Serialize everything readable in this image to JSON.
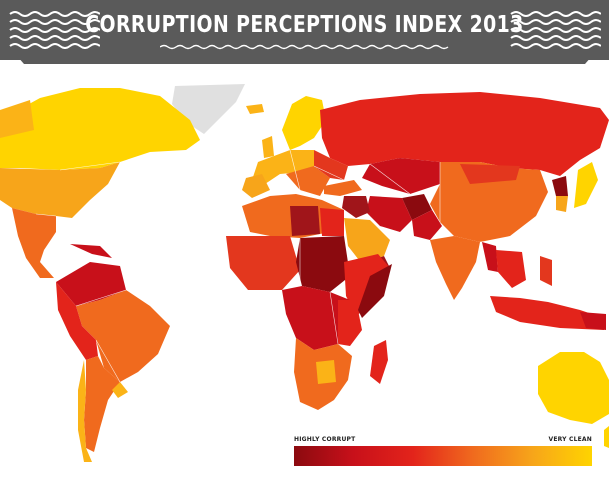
{
  "title": "CORRUPTION PERCEPTIONS INDEX 2013",
  "legend": {
    "low_label": "HIGHLY CORRUPT",
    "high_label": "VERY CLEAN",
    "gradient": [
      "#8b0a0f",
      "#c8101a",
      "#e3241b",
      "#f06a1e",
      "#f7a51a",
      "#ffd400"
    ]
  },
  "colors": {
    "header": "#5a5a5a",
    "ocean": "#ffffff",
    "no_data": "#e0e0e0",
    "very_clean": "#ffd400",
    "clean": "#fbb317",
    "mid": "#f07a22",
    "corrupt": "#e3371e",
    "highly_corrupt": "#a0151a"
  }
}
